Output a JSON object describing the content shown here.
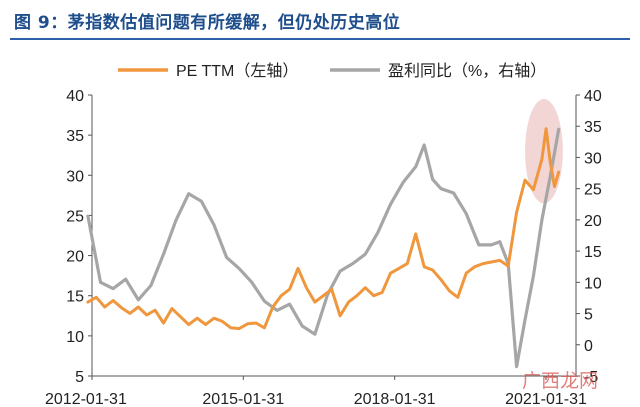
{
  "title": "图 9：茅指数估值问题有所缓解，但仍处历史高位",
  "watermark": "广西龙网",
  "colors": {
    "title": "#1f4e8c",
    "pe": "#f0963c",
    "yoy": "#a6a6a6",
    "highlight": "#e8b4b4"
  },
  "chart_data": {
    "type": "line",
    "x_ticks": [
      "2012-01-31",
      "2015-01-31",
      "2018-01-31",
      "2021-01-31"
    ],
    "left_axis": {
      "ylim": [
        5,
        40
      ],
      "ticks": [
        5,
        10,
        15,
        20,
        25,
        30,
        35,
        40
      ]
    },
    "right_axis": {
      "ylim": [
        -5,
        40
      ],
      "ticks": [
        -5,
        0,
        5,
        10,
        15,
        20,
        25,
        30,
        35,
        40
      ],
      "tick_labels": [
        "-5",
        "0",
        "5",
        "10",
        "15",
        "20",
        "25",
        "30",
        "35",
        "40"
      ]
    },
    "highlight": {
      "shape": "ellipse",
      "x_range": [
        "2020-09",
        "2021-06"
      ],
      "y_range_left": [
        26.5,
        39.5
      ]
    },
    "series": [
      {
        "name": "PE TTM（左轴）",
        "axis": "left",
        "color": "#f0963c",
        "points": [
          [
            "2012-01",
            14.2
          ],
          [
            "2012-03",
            14.8
          ],
          [
            "2012-05",
            13.6
          ],
          [
            "2012-07",
            14.4
          ],
          [
            "2012-09",
            13.5
          ],
          [
            "2012-11",
            12.8
          ],
          [
            "2013-01",
            13.6
          ],
          [
            "2013-03",
            12.6
          ],
          [
            "2013-05",
            13.2
          ],
          [
            "2013-07",
            11.6
          ],
          [
            "2013-09",
            13.4
          ],
          [
            "2013-11",
            12.4
          ],
          [
            "2014-01",
            11.4
          ],
          [
            "2014-03",
            12.2
          ],
          [
            "2014-05",
            11.4
          ],
          [
            "2014-07",
            12.2
          ],
          [
            "2014-09",
            11.8
          ],
          [
            "2014-11",
            11.0
          ],
          [
            "2015-01",
            10.9
          ],
          [
            "2015-03",
            11.5
          ],
          [
            "2015-05",
            11.6
          ],
          [
            "2015-07",
            11.0
          ],
          [
            "2015-09",
            13.6
          ],
          [
            "2015-11",
            15.0
          ],
          [
            "2016-01",
            15.8
          ],
          [
            "2016-03",
            18.4
          ],
          [
            "2016-05",
            16.0
          ],
          [
            "2016-07",
            14.2
          ],
          [
            "2016-09",
            15.0
          ],
          [
            "2016-11",
            15.8
          ],
          [
            "2017-01",
            12.5
          ],
          [
            "2017-03",
            14.2
          ],
          [
            "2017-05",
            15.0
          ],
          [
            "2017-07",
            16.0
          ],
          [
            "2017-09",
            15.0
          ],
          [
            "2017-11",
            15.4
          ],
          [
            "2018-01",
            17.8
          ],
          [
            "2018-03",
            18.4
          ],
          [
            "2018-05",
            19.0
          ],
          [
            "2018-07",
            22.7
          ],
          [
            "2018-09",
            18.6
          ],
          [
            "2018-11",
            18.2
          ],
          [
            "2019-01",
            17.0
          ],
          [
            "2019-03",
            15.6
          ],
          [
            "2019-05",
            14.8
          ],
          [
            "2019-07",
            17.8
          ],
          [
            "2019-09",
            18.6
          ],
          [
            "2019-11",
            19.0
          ],
          [
            "2020-01",
            19.2
          ],
          [
            "2020-03",
            19.4
          ],
          [
            "2020-05",
            18.7
          ],
          [
            "2020-07",
            25.4
          ],
          [
            "2020-09",
            29.4
          ],
          [
            "2020-11",
            28.2
          ],
          [
            "2021-01",
            32.0
          ],
          [
            "2021-02",
            35.8
          ],
          [
            "2021-03",
            31.6
          ],
          [
            "2021-04",
            28.6
          ],
          [
            "2021-05",
            30.4
          ]
        ]
      },
      {
        "name": "盈利同比（%，右轴）",
        "axis": "right",
        "color": "#a6a6a6",
        "points": [
          [
            "2012-01",
            20.6
          ],
          [
            "2012-04",
            10.0
          ],
          [
            "2012-07",
            9.0
          ],
          [
            "2012-10",
            10.5
          ],
          [
            "2013-01",
            7.2
          ],
          [
            "2013-04",
            9.5
          ],
          [
            "2013-07",
            14.5
          ],
          [
            "2013-10",
            20.0
          ],
          [
            "2014-01",
            24.2
          ],
          [
            "2014-04",
            23.0
          ],
          [
            "2014-07",
            19.2
          ],
          [
            "2014-10",
            14.0
          ],
          [
            "2015-01",
            12.2
          ],
          [
            "2015-04",
            10.0
          ],
          [
            "2015-07",
            7.0
          ],
          [
            "2015-10",
            5.5
          ],
          [
            "2016-01",
            6.5
          ],
          [
            "2016-04",
            3.0
          ],
          [
            "2016-07",
            1.7
          ],
          [
            "2016-10",
            8.0
          ],
          [
            "2017-01",
            11.8
          ],
          [
            "2017-04",
            13.0
          ],
          [
            "2017-07",
            14.5
          ],
          [
            "2017-10",
            18.0
          ],
          [
            "2018-01",
            22.5
          ],
          [
            "2018-04",
            26.0
          ],
          [
            "2018-07",
            28.5
          ],
          [
            "2018-09",
            32.0
          ],
          [
            "2018-11",
            26.5
          ],
          [
            "2019-01",
            25.0
          ],
          [
            "2019-04",
            24.3
          ],
          [
            "2019-07",
            21.0
          ],
          [
            "2019-10",
            16.0
          ],
          [
            "2020-01",
            16.0
          ],
          [
            "2020-03",
            16.5
          ],
          [
            "2020-05",
            13.0
          ],
          [
            "2020-07",
            -3.5
          ],
          [
            "2020-09",
            4.0
          ],
          [
            "2020-11",
            11.0
          ],
          [
            "2021-01",
            20.0
          ],
          [
            "2021-03",
            27.0
          ],
          [
            "2021-05",
            34.5
          ]
        ]
      }
    ]
  }
}
